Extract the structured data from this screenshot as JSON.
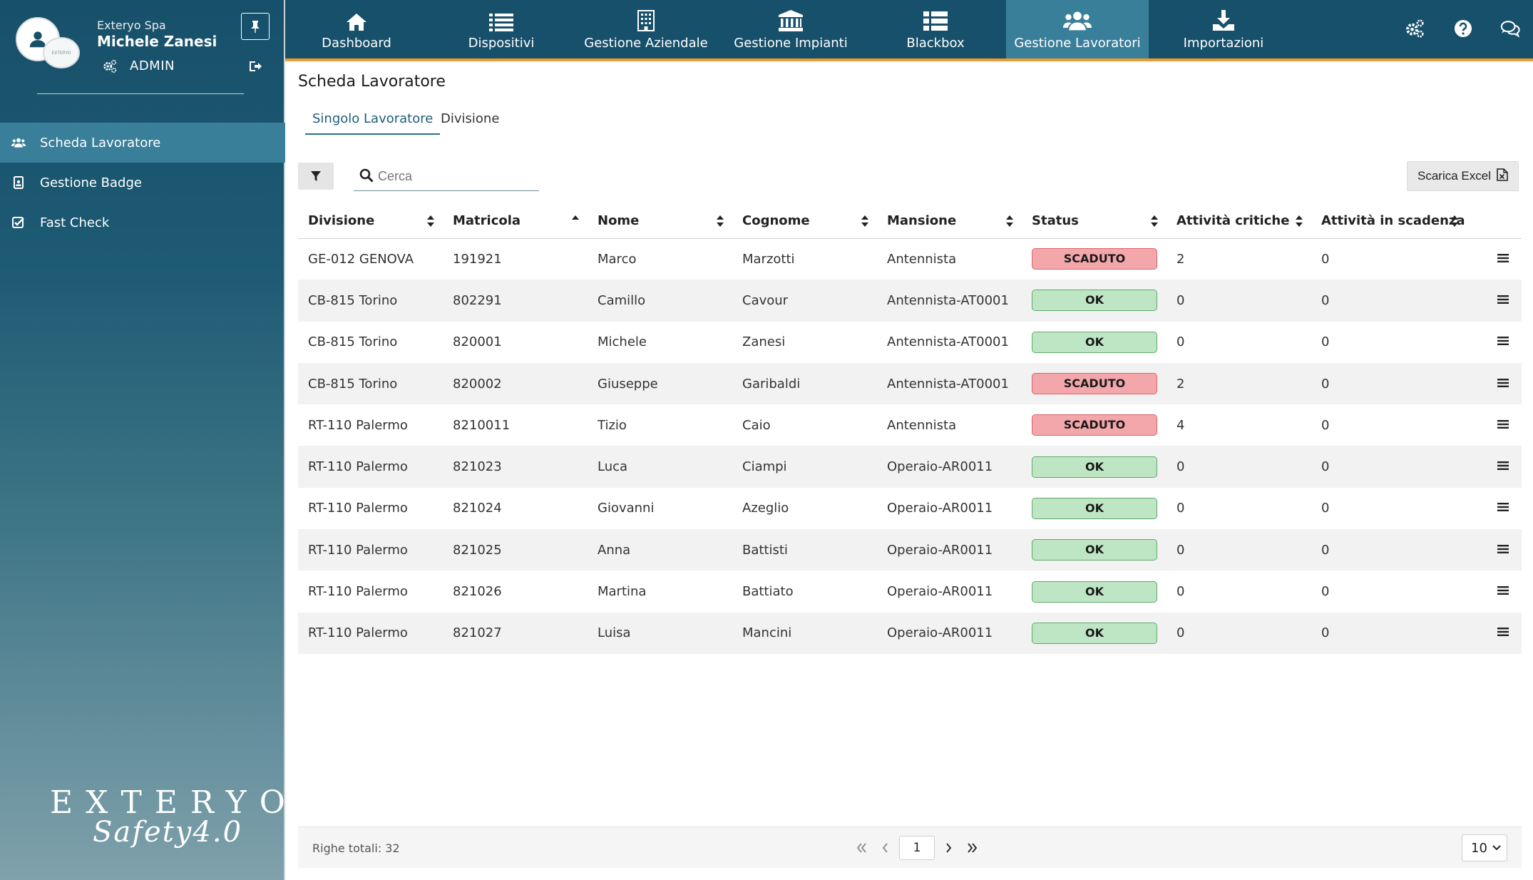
{
  "profile": {
    "company": "Exteryo Spa",
    "username": "Michele Zanesi",
    "role": "ADMIN",
    "logo_text": "EXTERYO"
  },
  "sidebar": {
    "items": [
      {
        "label": "Scheda Lavoratore",
        "icon": "users-icon",
        "active": true
      },
      {
        "label": "Gestione Badge",
        "icon": "badge-icon",
        "active": false
      },
      {
        "label": "Fast Check",
        "icon": "check-square-icon",
        "active": false
      }
    ],
    "brand_top": "EXTERYO",
    "brand_bottom": "Safety4.0"
  },
  "topnav": {
    "tabs": [
      {
        "label": "Dashboard",
        "icon": "home-icon"
      },
      {
        "label": "Dispositivi",
        "icon": "list-icon"
      },
      {
        "label": "Gestione Aziendale",
        "icon": "building-icon"
      },
      {
        "label": "Gestione Impianti",
        "icon": "institution-icon"
      },
      {
        "label": "Blackbox",
        "icon": "th-list-icon"
      },
      {
        "label": "Gestione Lavoratori",
        "icon": "users-icon",
        "active": true
      },
      {
        "label": "Importazioni",
        "icon": "download-icon"
      }
    ],
    "accent_color": "#f29a2e",
    "bar_color": "#17506a",
    "active_color": "#3a7f99"
  },
  "page": {
    "title": "Scheda Lavoratore",
    "subtabs": [
      "Singolo Lavoratore",
      "Divisione"
    ],
    "search_placeholder": "Cerca",
    "excel_label": "Scarica Excel"
  },
  "table": {
    "columns": [
      "Divisione",
      "Matricola",
      "Nome",
      "Cognome",
      "Mansione",
      "Status",
      "Attività critiche",
      "Attività in scadenza"
    ],
    "sorted_column": "Matricola",
    "rows": [
      {
        "divisione": "GE-012 GENOVA",
        "matricola": "191921",
        "nome": "Marco",
        "cognome": "Marzotti",
        "mansione": "Antennista",
        "status": "SCADUTO",
        "critiche": "2",
        "scadenza": "0"
      },
      {
        "divisione": "CB-815 Torino",
        "matricola": "802291",
        "nome": "Camillo",
        "cognome": "Cavour",
        "mansione": "Antennista-AT0001",
        "status": "OK",
        "critiche": "0",
        "scadenza": "0"
      },
      {
        "divisione": "CB-815 Torino",
        "matricola": "820001",
        "nome": "Michele",
        "cognome": "Zanesi",
        "mansione": "Antennista-AT0001",
        "status": "OK",
        "critiche": "0",
        "scadenza": "0"
      },
      {
        "divisione": "CB-815 Torino",
        "matricola": "820002",
        "nome": "Giuseppe",
        "cognome": "Garibaldi",
        "mansione": "Antennista-AT0001",
        "status": "SCADUTO",
        "critiche": "2",
        "scadenza": "0"
      },
      {
        "divisione": "RT-110 Palermo",
        "matricola": "8210011",
        "nome": "Tizio",
        "cognome": "Caio",
        "mansione": "Antennista",
        "status": "SCADUTO",
        "critiche": "4",
        "scadenza": "0"
      },
      {
        "divisione": "RT-110 Palermo",
        "matricola": "821023",
        "nome": "Luca",
        "cognome": "Ciampi",
        "mansione": "Operaio-AR0011",
        "status": "OK",
        "critiche": "0",
        "scadenza": "0"
      },
      {
        "divisione": "RT-110 Palermo",
        "matricola": "821024",
        "nome": "Giovanni",
        "cognome": "Azeglio",
        "mansione": "Operaio-AR0011",
        "status": "OK",
        "critiche": "0",
        "scadenza": "0"
      },
      {
        "divisione": "RT-110 Palermo",
        "matricola": "821025",
        "nome": "Anna",
        "cognome": "Battisti",
        "mansione": "Operaio-AR0011",
        "status": "OK",
        "critiche": "0",
        "scadenza": "0"
      },
      {
        "divisione": "RT-110 Palermo",
        "matricola": "821026",
        "nome": "Martina",
        "cognome": "Battiato",
        "mansione": "Operaio-AR0011",
        "status": "OK",
        "critiche": "0",
        "scadenza": "0"
      },
      {
        "divisione": "RT-110 Palermo",
        "matricola": "821027",
        "nome": "Luisa",
        "cognome": "Mancini",
        "mansione": "Operaio-AR0011",
        "status": "OK",
        "critiche": "0",
        "scadenza": "0"
      }
    ]
  },
  "footer": {
    "total_label": "Righe totali: 32",
    "current_page": "1",
    "page_size": "10"
  }
}
